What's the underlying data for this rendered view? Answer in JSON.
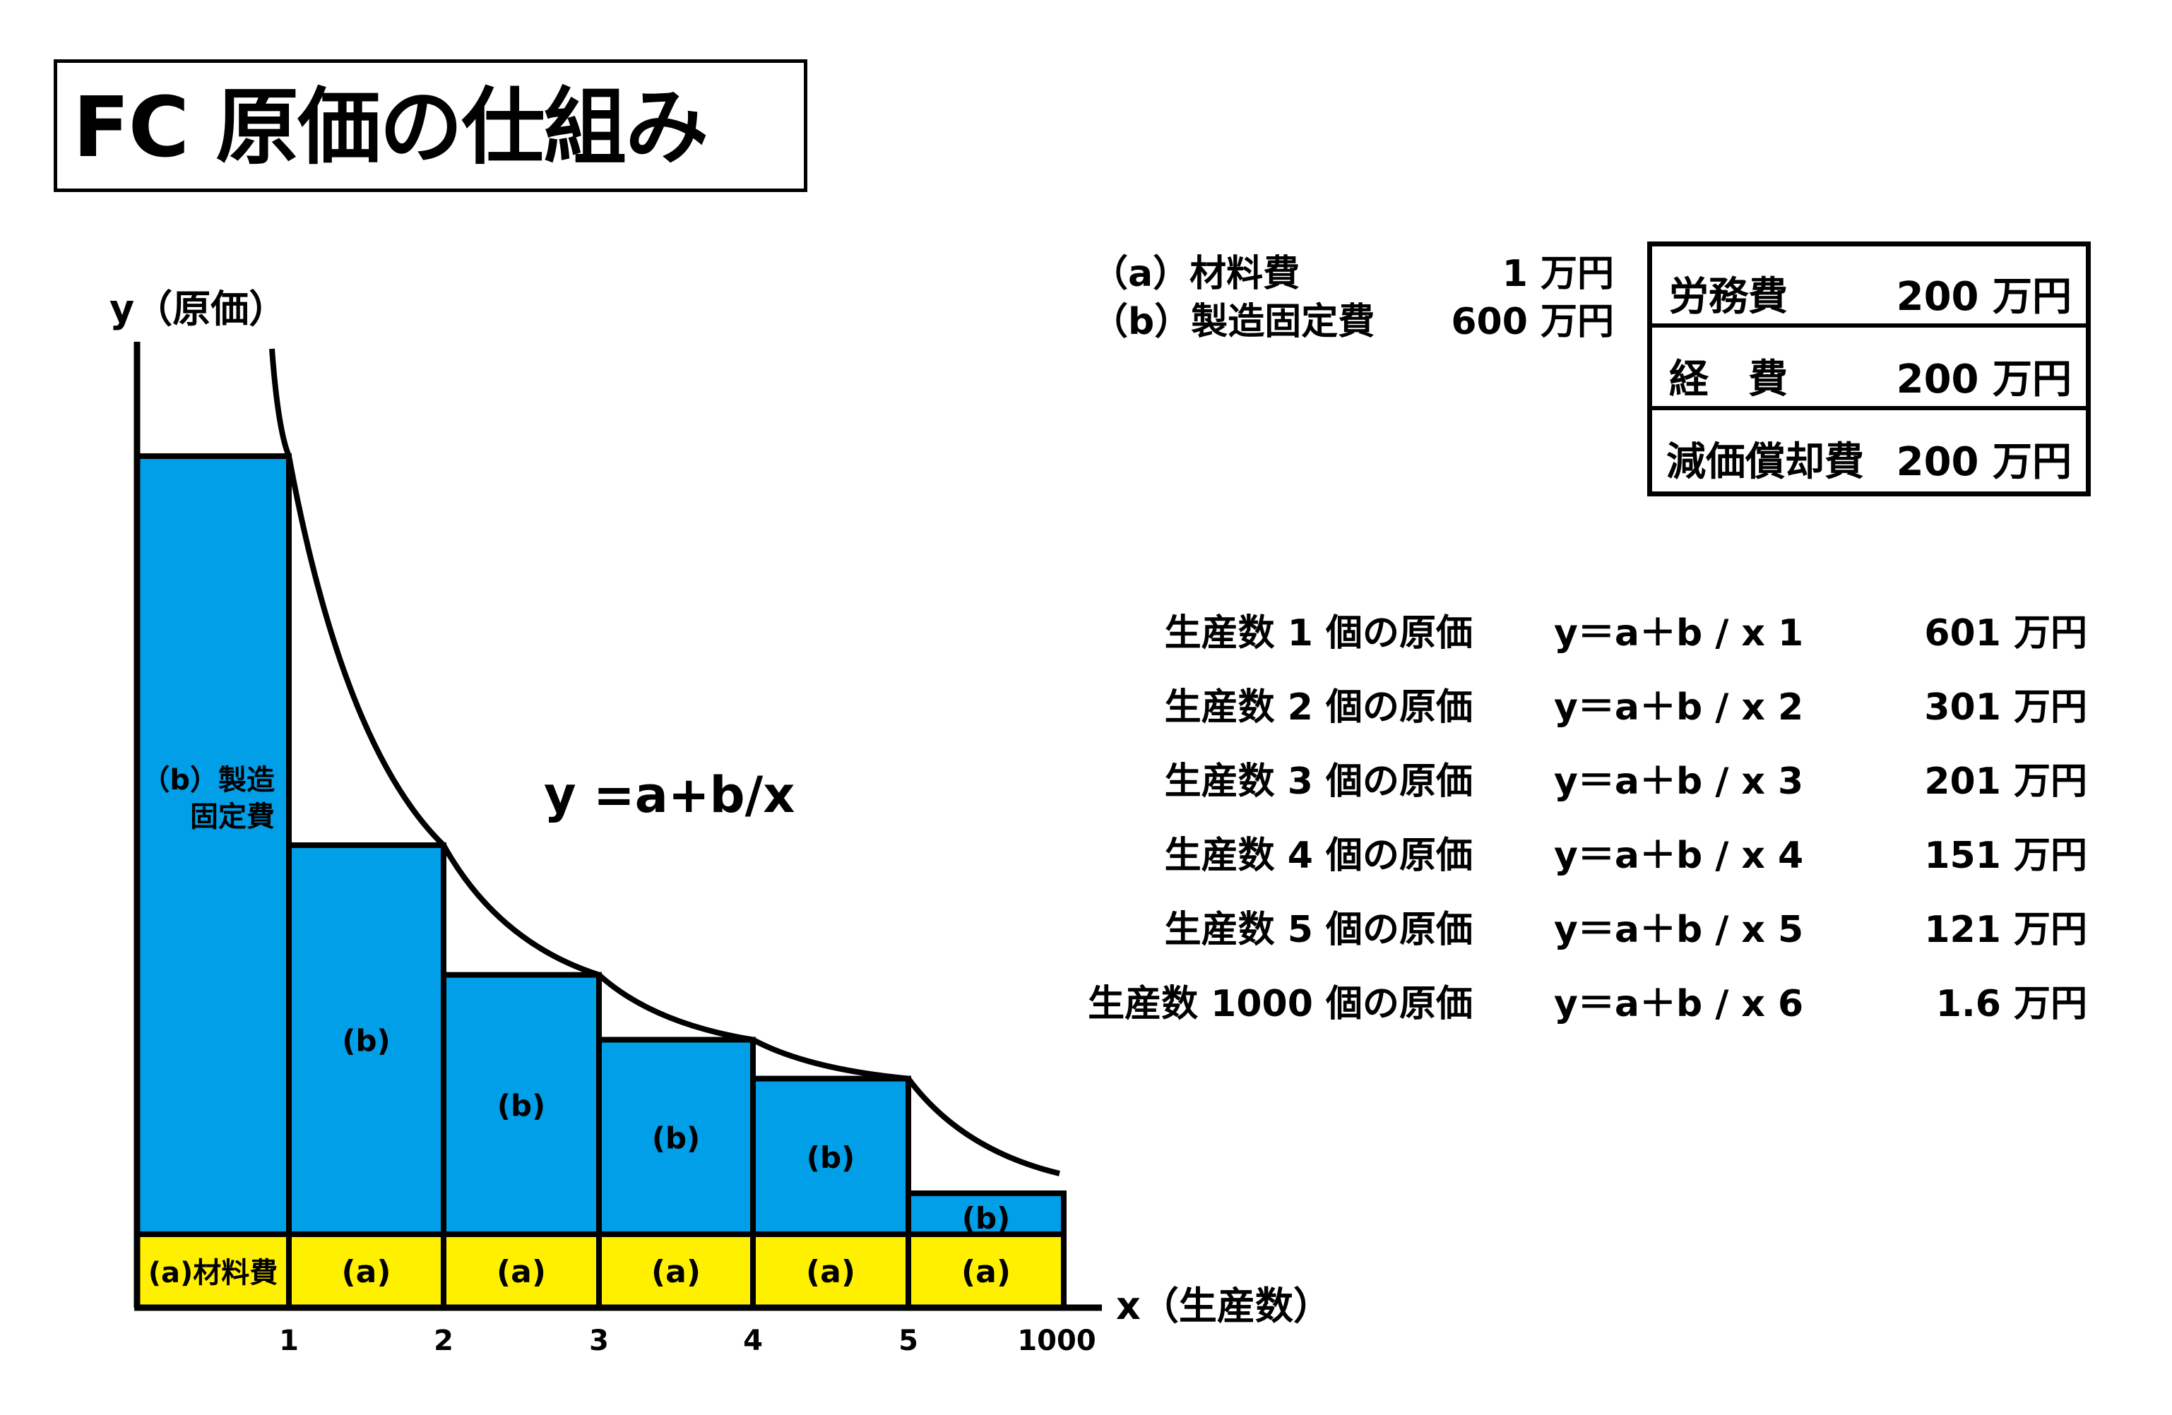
{
  "title": "FC 原価の仕組み",
  "chart_data": {
    "type": "bar",
    "stacked": true,
    "categories": [
      "1",
      "2",
      "3",
      "4",
      "5",
      "1000"
    ],
    "series": [
      {
        "name": "(a)材料費",
        "values": [
          1,
          1,
          1,
          1,
          1,
          1
        ],
        "color": "#FFF000"
      },
      {
        "name": "(b)製造固定費",
        "values": [
          600,
          300,
          200,
          150,
          120,
          0.6
        ],
        "color": "#009FE8"
      }
    ],
    "curve": {
      "label": "y =a+b/x"
    },
    "y_label": "y（原価）",
    "x_label": "x（生産数）",
    "bar_labels": {
      "a_first": "(a)材料費",
      "a_rest": "(a)",
      "b_first_line1": "（b）製造",
      "b_first_line2": "固定費",
      "b_rest": "(b)"
    }
  },
  "legend": [
    {
      "label": "（a）材料費",
      "value": "1 万円"
    },
    {
      "label": "（b）製造固定費",
      "value": "600 万円"
    }
  ],
  "cost_table": [
    {
      "label": "労務費",
      "value": "200 万円"
    },
    {
      "label": "経　費",
      "value": "200 万円"
    },
    {
      "label": "減価償却費",
      "value": "200 万円"
    }
  ],
  "calculations": [
    {
      "label": "生産数 1 個の原価",
      "formula": "y＝a＋b / x 1",
      "result": "601 万円"
    },
    {
      "label": "生産数 2 個の原価",
      "formula": "y＝a＋b / x 2",
      "result": "301 万円"
    },
    {
      "label": "生産数 3 個の原価",
      "formula": "y＝a＋b / x 3",
      "result": "201 万円"
    },
    {
      "label": "生産数 4 個の原価",
      "formula": "y＝a＋b / x 4",
      "result": "151 万円"
    },
    {
      "label": "生産数 5 個の原価",
      "formula": "y＝a＋b / x 5",
      "result": "121 万円"
    },
    {
      "label": "生産数 1000 個の原価",
      "formula": "y＝a＋b / x 6",
      "result": "1.6 万円"
    }
  ]
}
